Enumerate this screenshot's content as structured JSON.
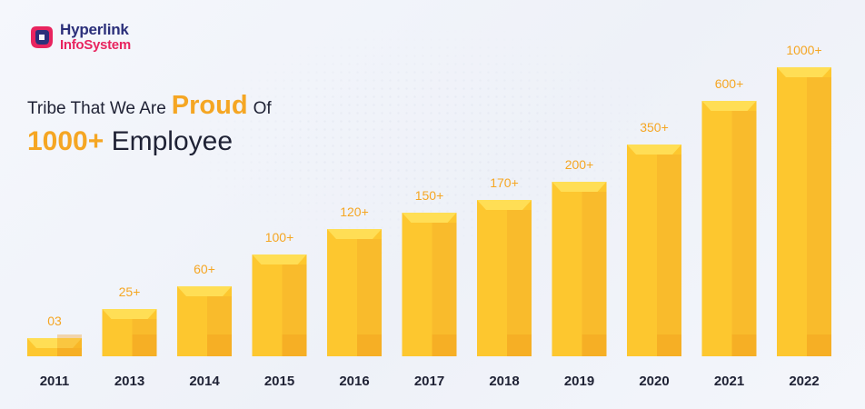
{
  "brand": {
    "line1": "Hyperlink",
    "line2": "InfoSystem"
  },
  "heading": {
    "line1_pre": "Tribe That We Are",
    "line1_highlight": "Proud",
    "line1_post": "Of",
    "line2_highlight": "1000+",
    "line2_post": "Employee"
  },
  "colors": {
    "accent": "#f5a623",
    "bar_front": "#fdc72f",
    "bar_top": "#ffde55",
    "bar_side": "#f6b02a",
    "text": "#1f2235"
  },
  "chart_data": {
    "type": "bar",
    "categories": [
      "2011",
      "2013",
      "2014",
      "2015",
      "2016",
      "2017",
      "2018",
      "2019",
      "2020",
      "2021",
      "2022"
    ],
    "values": [
      3,
      25,
      60,
      100,
      120,
      150,
      170,
      200,
      350,
      600,
      1000
    ],
    "data_labels": [
      "03",
      "25+",
      "60+",
      "100+",
      "120+",
      "150+",
      "170+",
      "200+",
      "350+",
      "600+",
      "1000+"
    ],
    "grid": false,
    "legend": "none"
  }
}
